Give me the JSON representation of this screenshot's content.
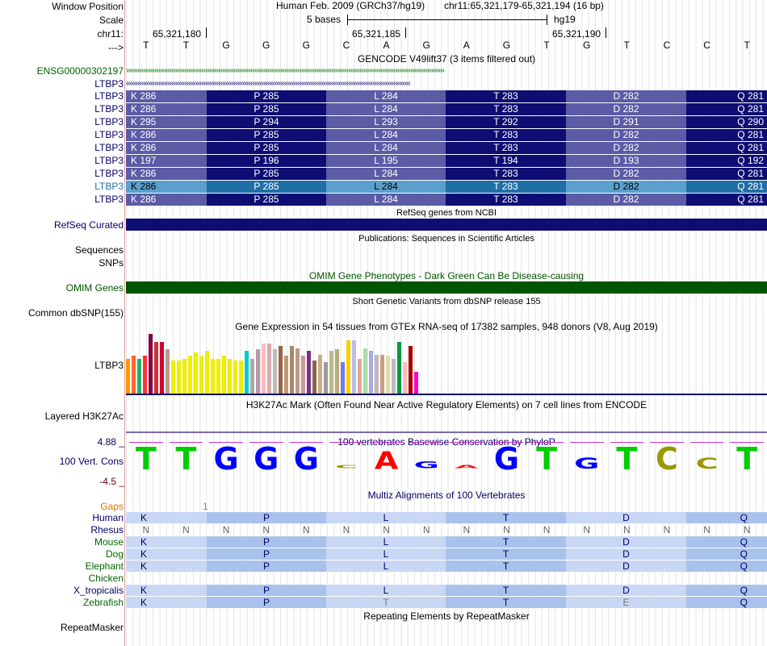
{
  "header": {
    "window_position_label": "Window Position",
    "scale_label": "Scale",
    "chr_label": "chr11:",
    "strand_label": "--->",
    "assembly": "Human Feb. 2009 (GRCh37/hg19)",
    "position": "chr11:65,321,179-65,321,194 (16 bp)",
    "scale_text": "5 bases",
    "scale_db": "hg19",
    "ticks": [
      "65,321,180",
      "65,321,185",
      "65,321,190"
    ],
    "bases": [
      "T",
      "T",
      "G",
      "G",
      "G",
      "C",
      "A",
      "G",
      "A",
      "G",
      "T",
      "G",
      "T",
      "C",
      "C",
      "T"
    ]
  },
  "gencode": {
    "title": "GENCODE V49lift37 (3 items filtered out)",
    "ensg_label": "ENSG00000302197",
    "ltbp3_label": "LTBP3",
    "rows": [
      {
        "label": "LTBP3",
        "aa": [
          "K 286",
          "P 285",
          "L 284",
          "T 283",
          "D 282",
          "Q 281"
        ],
        "highlight": false
      },
      {
        "label": "LTBP3",
        "aa": [
          "K 286",
          "P 285",
          "L 284",
          "T 283",
          "D 282",
          "Q 281"
        ],
        "highlight": false
      },
      {
        "label": "LTBP3",
        "aa": [
          "K 295",
          "P 294",
          "L 293",
          "T 292",
          "D 291",
          "Q 290"
        ],
        "highlight": false
      },
      {
        "label": "LTBP3",
        "aa": [
          "K 286",
          "P 285",
          "L 284",
          "T 283",
          "D 282",
          "Q 281"
        ],
        "highlight": false
      },
      {
        "label": "LTBP3",
        "aa": [
          "K 286",
          "P 285",
          "L 284",
          "T 283",
          "D 282",
          "Q 281"
        ],
        "highlight": false
      },
      {
        "label": "LTBP3",
        "aa": [
          "K 197",
          "P 196",
          "L 195",
          "T 194",
          "D 193",
          "Q 192"
        ],
        "highlight": false
      },
      {
        "label": "LTBP3",
        "aa": [
          "K 286",
          "P 285",
          "L 284",
          "T 283",
          "D 282",
          "Q 281"
        ],
        "highlight": false
      },
      {
        "label": "LTBP3",
        "aa": [
          "K 286",
          "P 285",
          "L 284",
          "T 283",
          "D 282",
          "Q 281"
        ],
        "highlight": true
      },
      {
        "label": "LTBP3",
        "aa": [
          "K 286",
          "P 285",
          "L 284",
          "T 283",
          "D 282",
          "Q 281"
        ],
        "highlight": false
      }
    ]
  },
  "refseq": {
    "title": "RefSeq genes from NCBI",
    "label": "RefSeq Curated"
  },
  "publications": {
    "title": "Publications: Sequences in Scientific Articles",
    "label_1": "Sequences",
    "label_2": "SNPs"
  },
  "omim": {
    "title": "OMIM Gene Phenotypes - Dark Green Can Be Disease-causing",
    "label": "OMIM Genes"
  },
  "dbsnp": {
    "title": "Short Genetic Variants from dbSNP release 155",
    "label": "Common dbSNP(155)"
  },
  "gtex": {
    "title": "Gene Expression in 54 tissues from GTEx RNA-seq of 17382 samples, 948 donors (V8, Aug 2019)",
    "label": "LTBP3",
    "bars": [
      {
        "v": 0.55,
        "c": "#ff9900"
      },
      {
        "v": 0.6,
        "c": "#ff6633"
      },
      {
        "v": 0.55,
        "c": "#33aa66"
      },
      {
        "v": 0.6,
        "c": "#ff3333"
      },
      {
        "v": 0.95,
        "c": "#880044"
      },
      {
        "v": 0.82,
        "c": "#cc3333"
      },
      {
        "v": 0.82,
        "c": "#cc0033"
      },
      {
        "v": 0.7,
        "c": "#bb9988"
      },
      {
        "v": 0.52,
        "c": "#eeee00"
      },
      {
        "v": 0.52,
        "c": "#eeee00"
      },
      {
        "v": 0.55,
        "c": "#eeee00"
      },
      {
        "v": 0.6,
        "c": "#eeee00"
      },
      {
        "v": 0.65,
        "c": "#eeee00"
      },
      {
        "v": 0.6,
        "c": "#eeee00"
      },
      {
        "v": 0.68,
        "c": "#eeee00"
      },
      {
        "v": 0.55,
        "c": "#eeee00"
      },
      {
        "v": 0.55,
        "c": "#eeee00"
      },
      {
        "v": 0.6,
        "c": "#eeee00"
      },
      {
        "v": 0.55,
        "c": "#eeee00"
      },
      {
        "v": 0.52,
        "c": "#eeee00"
      },
      {
        "v": 0.52,
        "c": "#eeee00"
      },
      {
        "v": 0.68,
        "c": "#00cccc"
      },
      {
        "v": 0.55,
        "c": "#aaaaaa"
      },
      {
        "v": 0.7,
        "c": "#bb99aa"
      },
      {
        "v": 0.8,
        "c": "#ffbbbb"
      },
      {
        "v": 0.8,
        "c": "#ddaaaa"
      },
      {
        "v": 0.7,
        "c": "#bbbbbb"
      },
      {
        "v": 0.76,
        "c": "#996644"
      },
      {
        "v": 0.6,
        "c": "#bb9977"
      },
      {
        "v": 0.75,
        "c": "#aa8866"
      },
      {
        "v": 0.72,
        "c": "#bb9988"
      },
      {
        "v": 0.6,
        "c": "#cc9999"
      },
      {
        "v": 0.68,
        "c": "#773388"
      },
      {
        "v": 0.52,
        "c": "#886644"
      },
      {
        "v": 0.62,
        "c": "#ccaa88"
      },
      {
        "v": 0.5,
        "c": "#999999"
      },
      {
        "v": 0.68,
        "c": "#bbbb88"
      },
      {
        "v": 0.7,
        "c": "#bbaa77"
      },
      {
        "v": 0.5,
        "c": "#7777ee"
      },
      {
        "v": 0.85,
        "c": "#ffcc00"
      },
      {
        "v": 0.85,
        "c": "#bbbbee"
      },
      {
        "v": 0.55,
        "c": "#ddaa99"
      },
      {
        "v": 0.72,
        "c": "#aaddaa"
      },
      {
        "v": 0.68,
        "c": "#aaaadd"
      },
      {
        "v": 0.62,
        "c": "#bbbbbb"
      },
      {
        "v": 0.62,
        "c": "#cc9988"
      },
      {
        "v": 0.6,
        "c": "#ddddaa"
      },
      {
        "v": 0.55,
        "c": "#bbbbbb"
      },
      {
        "v": 0.82,
        "c": "#009944"
      },
      {
        "v": 0.5,
        "c": "#ffbbbb"
      },
      {
        "v": 0.76,
        "c": "#aa0000"
      },
      {
        "v": 0.35,
        "c": "#ff00cc"
      }
    ]
  },
  "h3k27ac": {
    "title": "H3K27Ac Mark (Often Found Near Active Regulatory Elements) on 7 cell lines from ENCODE",
    "label": "Layered H3K27Ac"
  },
  "conservation": {
    "title": "100 vertebrates Basewise Conservation by PhyloP",
    "label": "100 Vert. Cons",
    "y_max": "4.88 _",
    "y_min": "-4.5 _",
    "letters": [
      {
        "b": "T",
        "s": 1.0,
        "c": "#00cc00"
      },
      {
        "b": "T",
        "s": 1.0,
        "c": "#00cc00"
      },
      {
        "b": "G",
        "s": 1.0,
        "c": "#0000ff"
      },
      {
        "b": "G",
        "s": 1.0,
        "c": "#0000ff"
      },
      {
        "b": "G",
        "s": 1.0,
        "c": "#0000ff"
      },
      {
        "b": "C",
        "s": 0.05,
        "c": "#999900"
      },
      {
        "b": "A",
        "s": 0.8,
        "c": "#ff0000"
      },
      {
        "b": "G",
        "s": 0.3,
        "c": "#0000ff"
      },
      {
        "b": "A",
        "s": 0.04,
        "c": "#ff0000"
      },
      {
        "b": "G",
        "s": 1.0,
        "c": "#0000ff"
      },
      {
        "b": "T",
        "s": 1.0,
        "c": "#00cc00"
      },
      {
        "b": "G",
        "s": 0.5,
        "c": "#0000ff"
      },
      {
        "b": "T",
        "s": 1.0,
        "c": "#00cc00"
      },
      {
        "b": "C",
        "s": 1.0,
        "c": "#999900"
      },
      {
        "b": "C",
        "s": 0.5,
        "c": "#999900"
      },
      {
        "b": "T",
        "s": 1.0,
        "c": "#00cc00"
      }
    ]
  },
  "multiz": {
    "title": "Multiz Alignments of 100 Vertebrates",
    "gaps_label": "Gaps",
    "gaps_value": "1",
    "species": [
      {
        "name": "Human",
        "color": "#000066",
        "aa": [
          "K",
          "P",
          "L",
          "T",
          "D",
          "Q"
        ],
        "fill": true
      },
      {
        "name": "Rhesus",
        "color": "#000066",
        "aa": [],
        "fill": false
      },
      {
        "name": "Mouse",
        "color": "#006600",
        "aa": [
          "K",
          "P",
          "L",
          "T",
          "D",
          "Q"
        ],
        "fill": true
      },
      {
        "name": "Dog",
        "color": "#006600",
        "aa": [
          "K",
          "P",
          "L",
          "T",
          "D",
          "Q"
        ],
        "fill": true
      },
      {
        "name": "Elephant",
        "color": "#006600",
        "aa": [
          "K",
          "P",
          "L",
          "T",
          "D",
          "Q"
        ],
        "fill": true
      },
      {
        "name": "Chicken",
        "color": "#006600",
        "aa": [],
        "fill": false
      },
      {
        "name": "X_tropicalis",
        "color": "#000066",
        "aa": [
          "K",
          "P",
          "L",
          "T",
          "D",
          "Q"
        ],
        "fill": true
      },
      {
        "name": "Zebrafish",
        "color": "#006600",
        "aa": [
          "K",
          "P",
          "T",
          "T",
          "E",
          "Q"
        ],
        "fill": true
      }
    ],
    "rhesus_letters": [
      "N",
      "N",
      "N",
      "N",
      "N",
      "N",
      "N",
      "N",
      "N",
      "N",
      "N",
      "N",
      "N",
      "N",
      "N",
      "N"
    ]
  },
  "repeatmasker": {
    "title": "Repeating Elements by RepeatMasker",
    "label": "RepeatMasker"
  },
  "colors": {
    "navy": "#0d0d73",
    "mid": "#5b5ba6",
    "hl_dark": "#1f6fa6",
    "hl_light": "#5aa0cc",
    "omim": "#005500"
  }
}
